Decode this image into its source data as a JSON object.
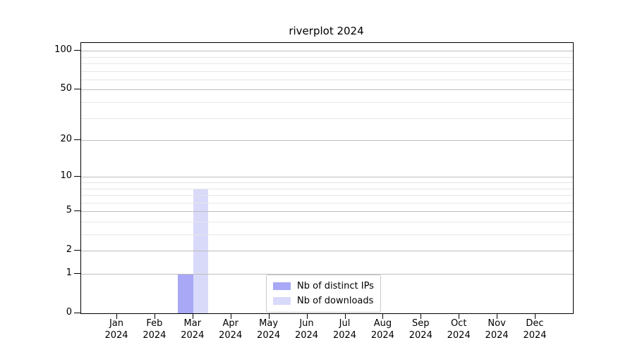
{
  "chart_data": {
    "type": "bar",
    "title": "riverplot 2024",
    "xlabel": "",
    "ylabel": "",
    "categories": [
      "Jan",
      "Feb",
      "Mar",
      "Apr",
      "May",
      "Jun",
      "Jul",
      "Aug",
      "Sep",
      "Oct",
      "Nov",
      "Dec"
    ],
    "category_year": "2024",
    "series": [
      {
        "name": "Nb of distinct IPs",
        "color": "#a8a8f6",
        "values": [
          0,
          0,
          1,
          0,
          0,
          0,
          0,
          0,
          0,
          0,
          0,
          0
        ]
      },
      {
        "name": "Nb of downloads",
        "color": "#d9d9f9",
        "values": [
          0,
          0,
          8,
          0,
          0,
          0,
          0,
          0,
          0,
          0,
          0,
          0
        ]
      }
    ],
    "y_axis": {
      "scale": "log1p",
      "major_ticks": [
        0,
        1,
        2,
        5,
        10,
        20,
        50,
        100
      ],
      "minor_gridlines": [
        3,
        4,
        6,
        7,
        8,
        9,
        30,
        40,
        60,
        70,
        80,
        90
      ],
      "ylim": [
        0,
        115
      ],
      "grid": true
    },
    "x_axis": {
      "grid": false
    },
    "legend": {
      "position": "lower-center"
    },
    "colors": {
      "major_grid": "#bdbdbd",
      "minor_grid": "#e7e7e7",
      "spine": "#000000",
      "background": "#ffffff"
    }
  }
}
